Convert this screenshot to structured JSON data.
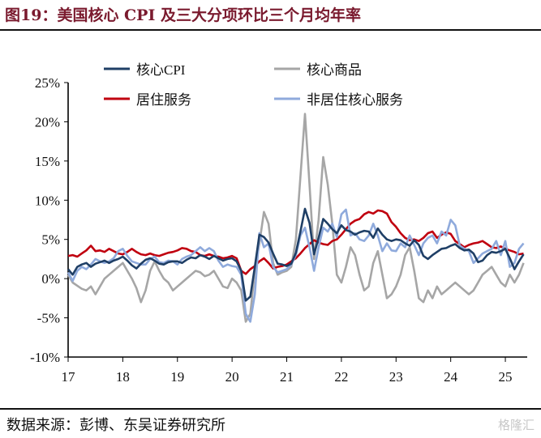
{
  "header": {
    "title": "图19：美国核心 CPI 及三大分项环比三个月均年率"
  },
  "footer": {
    "source": "数据来源：彭博、东吴证券研究所",
    "watermark": "格隆汇"
  },
  "colors": {
    "title": "#7a1a2e",
    "core_cpi": "#1f3f66",
    "core_goods": "#a6a6a6",
    "shelter": "#c0000f",
    "supercore": "#8faadc"
  },
  "chart_data": {
    "type": "line",
    "x_tick_labels": [
      "17",
      "18",
      "19",
      "20",
      "21",
      "22",
      "23",
      "24",
      "25"
    ],
    "y_ticks": [
      "25%",
      "20%",
      "15%",
      "10%",
      "5%",
      "0%",
      "-5%",
      "-10%"
    ],
    "ylim": [
      -10,
      25
    ],
    "xlim": [
      2017.0,
      2025.4
    ],
    "grid": false,
    "legend_position": "top",
    "x": [
      2017.0,
      2017.083,
      2017.167,
      2017.25,
      2017.333,
      2017.417,
      2017.5,
      2017.583,
      2017.667,
      2017.75,
      2017.833,
      2017.917,
      2018.0,
      2018.083,
      2018.167,
      2018.25,
      2018.333,
      2018.417,
      2018.5,
      2018.583,
      2018.667,
      2018.75,
      2018.833,
      2018.917,
      2019.0,
      2019.083,
      2019.167,
      2019.25,
      2019.333,
      2019.417,
      2019.5,
      2019.583,
      2019.667,
      2019.75,
      2019.833,
      2019.917,
      2020.0,
      2020.083,
      2020.167,
      2020.25,
      2020.333,
      2020.417,
      2020.5,
      2020.583,
      2020.667,
      2020.75,
      2020.833,
      2020.917,
      2021.0,
      2021.083,
      2021.167,
      2021.25,
      2021.333,
      2021.417,
      2021.5,
      2021.583,
      2021.667,
      2021.75,
      2021.833,
      2021.917,
      2022.0,
      2022.083,
      2022.167,
      2022.25,
      2022.333,
      2022.417,
      2022.5,
      2022.583,
      2022.667,
      2022.75,
      2022.833,
      2022.917,
      2023.0,
      2023.083,
      2023.167,
      2023.25,
      2023.333,
      2023.417,
      2023.5,
      2023.583,
      2023.667,
      2023.75,
      2023.833,
      2023.917,
      2024.0,
      2024.083,
      2024.167,
      2024.25,
      2024.333,
      2024.417,
      2024.5,
      2024.583,
      2024.667,
      2024.75,
      2024.833,
      2024.917,
      2025.0,
      2025.083,
      2025.167,
      2025.25,
      2025.333
    ],
    "series": [
      {
        "name": "核心CPI",
        "color": "#1f3f66",
        "values": [
          1.2,
          0.5,
          1.5,
          1.8,
          2.0,
          1.5,
          1.9,
          2.1,
          2.3,
          2.0,
          2.3,
          2.5,
          2.8,
          2.3,
          1.7,
          1.3,
          1.9,
          2.4,
          2.6,
          2.3,
          1.9,
          1.8,
          2.1,
          2.2,
          2.2,
          2.0,
          2.4,
          2.7,
          2.6,
          3.0,
          2.8,
          2.5,
          2.9,
          2.6,
          2.3,
          2.5,
          2.6,
          2.2,
          1.0,
          -2.8,
          -2.3,
          1.5,
          5.6,
          5.3,
          4.6,
          3.2,
          1.9,
          1.8,
          1.6,
          1.9,
          3.3,
          6.0,
          8.9,
          7.1,
          3.1,
          5.2,
          7.6,
          7.0,
          6.3,
          5.8,
          6.8,
          6.2,
          6.0,
          5.6,
          5.9,
          6.1,
          6.0,
          5.2,
          6.4,
          5.6,
          5.0,
          4.8,
          5.0,
          4.9,
          4.5,
          4.2,
          4.9,
          4.3,
          2.9,
          2.5,
          3.0,
          3.4,
          3.8,
          3.9,
          4.2,
          4.4,
          3.9,
          3.6,
          3.7,
          3.2,
          2.1,
          2.3,
          3.0,
          3.4,
          3.3,
          3.5,
          3.8,
          2.6,
          1.2,
          2.2,
          3.1
        ]
      },
      {
        "name": "核心商品",
        "color": "#a6a6a6",
        "values": [
          0.5,
          -0.5,
          -0.9,
          -1.3,
          -1.5,
          -1.0,
          -2.0,
          -1.0,
          0.0,
          0.5,
          1.0,
          1.5,
          2.0,
          1.0,
          0.0,
          -1.2,
          -3.0,
          -1.5,
          1.0,
          2.2,
          1.0,
          0.0,
          -0.5,
          -1.5,
          -1.0,
          -0.5,
          0.0,
          0.5,
          1.0,
          0.8,
          0.3,
          0.5,
          1.0,
          0.0,
          -1.0,
          -1.2,
          0.0,
          -0.5,
          -1.5,
          -5.5,
          -4.5,
          1.0,
          4.5,
          8.5,
          7.0,
          2.0,
          0.5,
          0.8,
          1.0,
          1.5,
          5.0,
          13.0,
          21.0,
          12.0,
          2.5,
          7.5,
          15.5,
          12.0,
          7.0,
          0.5,
          -0.5,
          1.5,
          4.0,
          3.0,
          0.5,
          -1.5,
          -1.0,
          2.0,
          3.5,
          0.5,
          -2.5,
          -2.0,
          -1.0,
          0.5,
          3.0,
          4.0,
          1.0,
          -2.5,
          -3.0,
          -1.5,
          -2.5,
          -1.0,
          -2.0,
          -1.5,
          -1.0,
          -0.5,
          -1.0,
          -1.5,
          -2.0,
          -1.5,
          -0.5,
          0.5,
          1.0,
          1.5,
          0.5,
          -0.5,
          -1.0,
          0.5,
          -0.5,
          0.5,
          2.0
        ]
      },
      {
        "name": "居住服务",
        "color": "#c0000f",
        "values": [
          2.9,
          3.0,
          2.8,
          3.2,
          3.6,
          4.2,
          3.5,
          3.6,
          3.4,
          3.8,
          3.5,
          3.2,
          3.1,
          3.4,
          3.8,
          3.4,
          3.1,
          3.0,
          3.2,
          3.0,
          2.9,
          3.1,
          3.3,
          3.4,
          3.6,
          3.9,
          3.8,
          3.5,
          3.4,
          3.0,
          2.9,
          3.1,
          2.9,
          2.8,
          2.6,
          2.7,
          2.9,
          2.6,
          1.0,
          0.6,
          1.2,
          1.6,
          2.2,
          2.6,
          2.0,
          1.3,
          1.5,
          1.6,
          1.8,
          2.2,
          2.6,
          3.2,
          3.9,
          4.4,
          4.9,
          4.6,
          4.4,
          4.3,
          4.8,
          5.0,
          5.6,
          6.3,
          7.0,
          7.4,
          7.6,
          8.2,
          8.5,
          8.3,
          8.7,
          8.6,
          8.3,
          7.2,
          6.6,
          5.8,
          5.2,
          4.9,
          5.0,
          4.8,
          5.2,
          5.8,
          6.0,
          5.2,
          5.6,
          5.9,
          5.7,
          4.8,
          4.4,
          4.0,
          4.3,
          4.5,
          4.6,
          4.8,
          4.4,
          4.0,
          3.9,
          4.1,
          3.8,
          3.6,
          3.4,
          3.1,
          3.2
        ]
      },
      {
        "name": "非居住核心服务",
        "color": "#8faadc",
        "values": [
          0.8,
          -0.3,
          1.0,
          1.5,
          1.2,
          1.8,
          2.5,
          2.2,
          2.0,
          2.2,
          2.6,
          3.5,
          3.8,
          2.9,
          2.2,
          2.0,
          1.8,
          1.8,
          2.5,
          2.8,
          2.1,
          2.0,
          2.3,
          2.2,
          1.8,
          2.5,
          2.8,
          3.0,
          3.5,
          4.0,
          3.5,
          3.9,
          3.5,
          2.3,
          1.5,
          1.8,
          1.6,
          1.5,
          0.5,
          -4.5,
          -5.5,
          -2.0,
          5.8,
          4.0,
          4.5,
          1.5,
          0.8,
          1.0,
          1.2,
          1.8,
          3.0,
          5.5,
          6.5,
          4.0,
          1.0,
          4.0,
          6.5,
          6.0,
          7.0,
          5.3,
          8.2,
          8.8,
          5.5,
          5.8,
          5.0,
          4.8,
          5.5,
          7.0,
          5.5,
          3.5,
          4.5,
          3.6,
          3.5,
          4.5,
          4.0,
          5.5,
          4.3,
          3.0,
          4.5,
          5.2,
          5.5,
          4.5,
          6.0,
          5.5,
          7.5,
          6.8,
          4.2,
          3.8,
          3.5,
          2.0,
          2.6,
          3.2,
          3.5,
          3.8,
          4.8,
          3.0,
          4.8,
          1.5,
          2.0,
          3.8,
          4.5
        ]
      }
    ]
  }
}
